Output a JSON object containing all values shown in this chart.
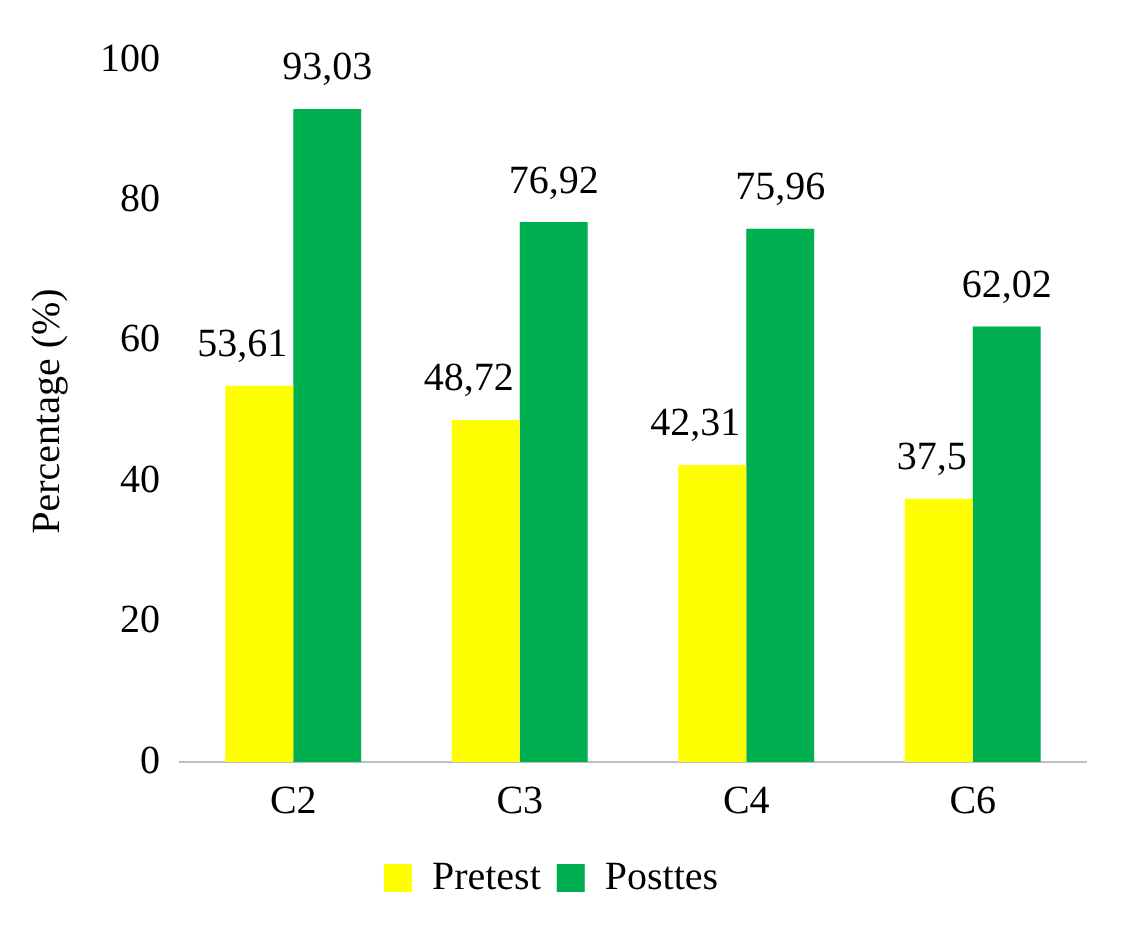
{
  "chart_data": {
    "type": "bar",
    "ylabel": "Percentage (%)",
    "categories": [
      "C2",
      "C3",
      "C4",
      "C6"
    ],
    "series": [
      {
        "name": "Pretest",
        "color": "#ffff00",
        "values": [
          53.61,
          48.72,
          42.31,
          37.5
        ],
        "value_labels": [
          "53,61",
          "48,72",
          "42,31",
          "37,5"
        ]
      },
      {
        "name": "Posttes",
        "color": "#00b050",
        "values": [
          93.03,
          76.92,
          75.96,
          62.02
        ],
        "value_labels": [
          "93,03",
          "76,92",
          "75,96",
          "62,02"
        ]
      }
    ],
    "ylim": [
      0,
      100
    ],
    "yticks": [
      0,
      20,
      40,
      60,
      80,
      100
    ],
    "grid": false,
    "legend": "bottom"
  }
}
